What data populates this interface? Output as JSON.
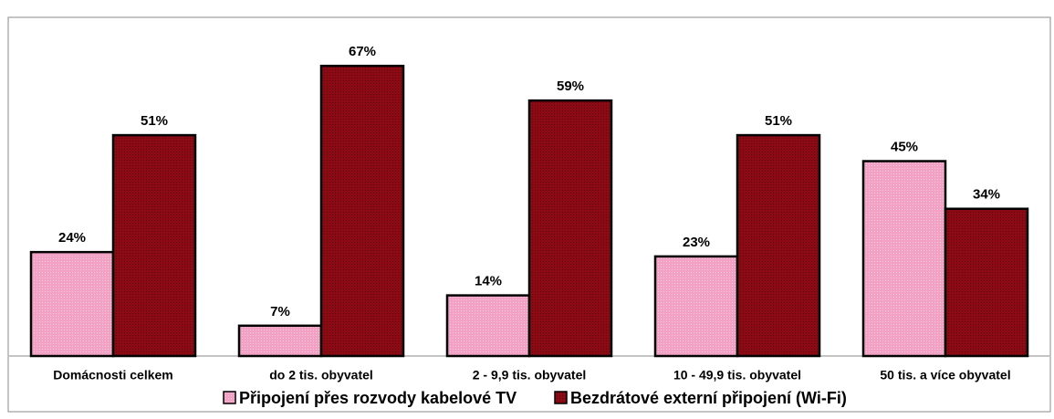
{
  "chart_data": {
    "type": "bar",
    "categories": [
      "Domácnosti celkem",
      "do 2 tis. obyvatel",
      "2 - 9,9 tis. obyvatel",
      "10 - 49,9 tis. obyvatel",
      "50 tis. a více obyvatel"
    ],
    "series": [
      {
        "name": "Připojení přes rozvody kabelové TV",
        "color": "#f2a0c4",
        "values": [
          24,
          7,
          14,
          23,
          45
        ],
        "value_labels": [
          "24%",
          "7%",
          "14%",
          "23%",
          "45%"
        ]
      },
      {
        "name": "Bezdrátové externí připojení (Wi-Fi)",
        "color": "#8c0a14",
        "values": [
          51,
          67,
          59,
          51,
          34
        ],
        "value_labels": [
          "51%",
          "67%",
          "59%",
          "51%",
          "34%"
        ]
      }
    ],
    "ylim": [
      0,
      78
    ],
    "legend": "bottom"
  }
}
